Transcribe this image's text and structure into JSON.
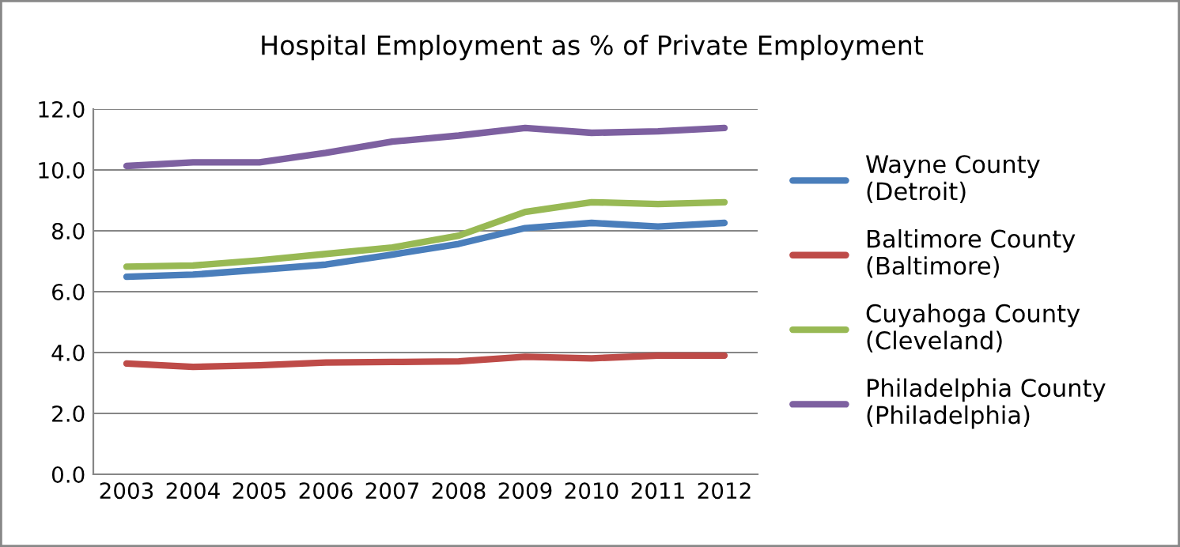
{
  "chart_data": {
    "type": "line",
    "title": "Hospital Employment as % of Private Employment",
    "categories": [
      "2003",
      "2004",
      "2005",
      "2006",
      "2007",
      "2008",
      "2009",
      "2010",
      "2011",
      "2012"
    ],
    "series": [
      {
        "name": "Wayne County\n(Detroit)",
        "color": "#4a7ebb",
        "values": [
          6.49,
          6.56,
          6.72,
          6.89,
          7.22,
          7.57,
          8.09,
          8.26,
          8.14,
          8.26
        ]
      },
      {
        "name": "Baltimore County\n(Baltimore)",
        "color": "#be4b48",
        "values": [
          3.64,
          3.53,
          3.58,
          3.67,
          3.69,
          3.71,
          3.86,
          3.81,
          3.9,
          3.9
        ]
      },
      {
        "name": "Cuyahoga County\n(Cleveland)",
        "color": "#98b954",
        "values": [
          6.82,
          6.86,
          7.03,
          7.24,
          7.45,
          7.84,
          8.62,
          8.94,
          8.88,
          8.94
        ]
      },
      {
        "name": "Philadelphia County\n(Philadelphia)",
        "color": "#7d60a0",
        "values": [
          10.13,
          10.25,
          10.25,
          10.56,
          10.93,
          11.13,
          11.38,
          11.22,
          11.27,
          11.38
        ]
      }
    ],
    "ylim": [
      0,
      12
    ],
    "yticks": [
      {
        "value": 0,
        "label": "0.0"
      },
      {
        "value": 2,
        "label": "2.0"
      },
      {
        "value": 4,
        "label": "4.0"
      },
      {
        "value": 6,
        "label": "6.0"
      },
      {
        "value": 8,
        "label": "8.0"
      },
      {
        "value": 10,
        "label": "10.0"
      },
      {
        "value": 12,
        "label": "12.0"
      }
    ],
    "grid": "y",
    "legend": "right",
    "marker": "none",
    "line_style": "solid"
  }
}
